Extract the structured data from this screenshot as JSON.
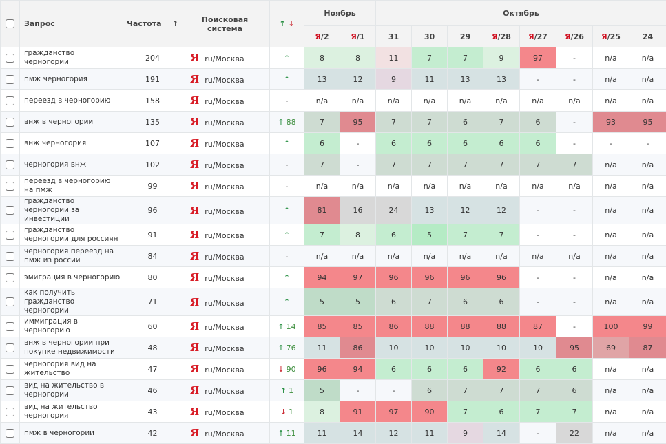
{
  "header": {
    "query": "Запрос",
    "frequency": "Частота",
    "frequency_sort": "↑",
    "engine": "Поисковая система",
    "change_up": "↑",
    "change_down": "↓",
    "months": [
      {
        "label": "Ноябрь",
        "span": 2
      },
      {
        "label": "Октябрь",
        "span": 8
      }
    ],
    "dates": [
      {
        "ya": "Я",
        "num": "/2"
      },
      {
        "ya": "Я",
        "num": "/1"
      },
      {
        "ya": "",
        "num": "31"
      },
      {
        "ya": "",
        "num": "30"
      },
      {
        "ya": "",
        "num": "29"
      },
      {
        "ya": "Я",
        "num": "/28"
      },
      {
        "ya": "Я",
        "num": "/27"
      },
      {
        "ya": "Я",
        "num": "/26"
      },
      {
        "ya": "Я",
        "num": "/25"
      },
      {
        "ya": "",
        "num": "24"
      }
    ]
  },
  "engine_logo": "Я",
  "engine_region": "ru/Москва",
  "colors": {
    "L": "#dcf1e0",
    "G": "#c4edd0",
    "G2": "#b5ebc5",
    "M": "#cedcd2",
    "M2": "#bfdcc8",
    "B": "#d6e2e3",
    "P": "#e5d8e1",
    "K": "#f2e1e2",
    "S": "#d8d8d8",
    "R": "#f4878b",
    "D": "#e08a90",
    "D2": "#e0a4a6"
  },
  "rows": [
    {
      "query": "гражданство черногории",
      "freq": "204",
      "dir": "up",
      "delta": "",
      "cells": [
        [
          "8",
          "L"
        ],
        [
          "8",
          "L"
        ],
        [
          "11",
          "K"
        ],
        [
          "7",
          "G"
        ],
        [
          "7",
          "G"
        ],
        [
          "9",
          "L"
        ],
        [
          "97",
          "R"
        ],
        [
          "-",
          ""
        ],
        [
          "n/a",
          ""
        ],
        [
          "n/a",
          ""
        ]
      ]
    },
    {
      "query": "пмж черногория",
      "freq": "191",
      "dir": "up",
      "delta": "",
      "cells": [
        [
          "13",
          "B"
        ],
        [
          "12",
          "B"
        ],
        [
          "9",
          "P"
        ],
        [
          "11",
          "B"
        ],
        [
          "13",
          "B"
        ],
        [
          "13",
          "B"
        ],
        [
          "-",
          ""
        ],
        [
          "-",
          ""
        ],
        [
          "n/a",
          ""
        ],
        [
          "n/a",
          ""
        ]
      ]
    },
    {
      "query": "переезд в черногорию",
      "freq": "158",
      "dir": "none",
      "delta": "",
      "cells": [
        [
          "n/a",
          ""
        ],
        [
          "n/a",
          ""
        ],
        [
          "n/a",
          ""
        ],
        [
          "n/a",
          ""
        ],
        [
          "n/a",
          ""
        ],
        [
          "n/a",
          ""
        ],
        [
          "n/a",
          ""
        ],
        [
          "n/a",
          ""
        ],
        [
          "n/a",
          ""
        ],
        [
          "n/a",
          ""
        ]
      ]
    },
    {
      "query": "внж в черногории",
      "freq": "135",
      "dir": "up",
      "delta": "88",
      "cells": [
        [
          "7",
          "M"
        ],
        [
          "95",
          "D"
        ],
        [
          "7",
          "M"
        ],
        [
          "7",
          "M"
        ],
        [
          "6",
          "M"
        ],
        [
          "7",
          "M"
        ],
        [
          "6",
          "M"
        ],
        [
          "-",
          ""
        ],
        [
          "93",
          "D"
        ],
        [
          "95",
          "D"
        ]
      ]
    },
    {
      "query": "внж черногория",
      "freq": "107",
      "dir": "up",
      "delta": "",
      "cells": [
        [
          "6",
          "G"
        ],
        [
          "-",
          ""
        ],
        [
          "6",
          "G"
        ],
        [
          "6",
          "G"
        ],
        [
          "6",
          "G"
        ],
        [
          "6",
          "G"
        ],
        [
          "6",
          "G"
        ],
        [
          "-",
          ""
        ],
        [
          "-",
          ""
        ],
        [
          "-",
          ""
        ]
      ]
    },
    {
      "query": "черногория внж",
      "freq": "102",
      "dir": "none",
      "delta": "",
      "cells": [
        [
          "7",
          "M"
        ],
        [
          "-",
          ""
        ],
        [
          "7",
          "M"
        ],
        [
          "7",
          "M"
        ],
        [
          "7",
          "M"
        ],
        [
          "7",
          "M"
        ],
        [
          "7",
          "M"
        ],
        [
          "7",
          "M"
        ],
        [
          "n/a",
          ""
        ],
        [
          "n/a",
          ""
        ]
      ]
    },
    {
      "query": "переезд в черногорию на пмж",
      "freq": "99",
      "dir": "none",
      "delta": "",
      "cells": [
        [
          "n/a",
          ""
        ],
        [
          "n/a",
          ""
        ],
        [
          "n/a",
          ""
        ],
        [
          "n/a",
          ""
        ],
        [
          "n/a",
          ""
        ],
        [
          "n/a",
          ""
        ],
        [
          "n/a",
          ""
        ],
        [
          "n/a",
          ""
        ],
        [
          "n/a",
          ""
        ],
        [
          "n/a",
          ""
        ]
      ]
    },
    {
      "query": "гражданство черногории за инвестиции",
      "freq": "96",
      "dir": "up",
      "delta": "",
      "cells": [
        [
          "81",
          "D"
        ],
        [
          "16",
          "S"
        ],
        [
          "24",
          "S"
        ],
        [
          "13",
          "B"
        ],
        [
          "12",
          "B"
        ],
        [
          "12",
          "B"
        ],
        [
          "-",
          ""
        ],
        [
          "-",
          ""
        ],
        [
          "n/a",
          ""
        ],
        [
          "n/a",
          ""
        ]
      ]
    },
    {
      "query": "гражданство черногории для россиян",
      "freq": "91",
      "dir": "up",
      "delta": "",
      "cells": [
        [
          "7",
          "G"
        ],
        [
          "8",
          "L"
        ],
        [
          "6",
          "G"
        ],
        [
          "5",
          "G2"
        ],
        [
          "7",
          "G"
        ],
        [
          "7",
          "G"
        ],
        [
          "-",
          ""
        ],
        [
          "-",
          ""
        ],
        [
          "n/a",
          ""
        ],
        [
          "n/a",
          ""
        ]
      ]
    },
    {
      "query": "черногория переезд на пмж из россии",
      "freq": "84",
      "dir": "none",
      "delta": "",
      "cells": [
        [
          "n/a",
          ""
        ],
        [
          "n/a",
          ""
        ],
        [
          "n/a",
          ""
        ],
        [
          "n/a",
          ""
        ],
        [
          "n/a",
          ""
        ],
        [
          "n/a",
          ""
        ],
        [
          "n/a",
          ""
        ],
        [
          "n/a",
          ""
        ],
        [
          "n/a",
          ""
        ],
        [
          "n/a",
          ""
        ]
      ]
    },
    {
      "query": "эмиграция в черногорию",
      "freq": "80",
      "dir": "up",
      "delta": "",
      "cells": [
        [
          "94",
          "R"
        ],
        [
          "97",
          "R"
        ],
        [
          "96",
          "R"
        ],
        [
          "96",
          "R"
        ],
        [
          "96",
          "R"
        ],
        [
          "96",
          "R"
        ],
        [
          "-",
          ""
        ],
        [
          "-",
          ""
        ],
        [
          "n/a",
          ""
        ],
        [
          "n/a",
          ""
        ]
      ]
    },
    {
      "query": "как получить гражданство черногории",
      "freq": "71",
      "dir": "up",
      "delta": "",
      "cells": [
        [
          "5",
          "M2"
        ],
        [
          "5",
          "M2"
        ],
        [
          "6",
          "M"
        ],
        [
          "7",
          "M"
        ],
        [
          "6",
          "M"
        ],
        [
          "6",
          "M"
        ],
        [
          "-",
          ""
        ],
        [
          "-",
          ""
        ],
        [
          "n/a",
          ""
        ],
        [
          "n/a",
          ""
        ]
      ]
    },
    {
      "query": "иммиграция в черногорию",
      "freq": "60",
      "dir": "up",
      "delta": "14",
      "cells": [
        [
          "85",
          "R"
        ],
        [
          "85",
          "R"
        ],
        [
          "86",
          "R"
        ],
        [
          "88",
          "R"
        ],
        [
          "88",
          "R"
        ],
        [
          "88",
          "R"
        ],
        [
          "87",
          "R"
        ],
        [
          "-",
          ""
        ],
        [
          "100",
          "R"
        ],
        [
          "99",
          "R"
        ]
      ]
    },
    {
      "query": "внж в черногории при покупке недвижимости",
      "freq": "48",
      "dir": "up",
      "delta": "76",
      "cells": [
        [
          "11",
          "B"
        ],
        [
          "86",
          "D"
        ],
        [
          "10",
          "B"
        ],
        [
          "10",
          "B"
        ],
        [
          "10",
          "B"
        ],
        [
          "10",
          "B"
        ],
        [
          "10",
          "B"
        ],
        [
          "95",
          "D"
        ],
        [
          "69",
          "D2"
        ],
        [
          "87",
          "D"
        ]
      ]
    },
    {
      "query": "черногория вид на жительство",
      "freq": "47",
      "dir": "down",
      "delta": "90",
      "cells": [
        [
          "96",
          "R"
        ],
        [
          "94",
          "R"
        ],
        [
          "6",
          "G"
        ],
        [
          "6",
          "G"
        ],
        [
          "6",
          "G"
        ],
        [
          "92",
          "R"
        ],
        [
          "6",
          "G"
        ],
        [
          "6",
          "G"
        ],
        [
          "n/a",
          ""
        ],
        [
          "n/a",
          ""
        ]
      ]
    },
    {
      "query": "вид на жительство в черногории",
      "freq": "46",
      "dir": "up",
      "delta": "1",
      "cells": [
        [
          "5",
          "M2"
        ],
        [
          "-",
          ""
        ],
        [
          "-",
          ""
        ],
        [
          "6",
          "M"
        ],
        [
          "7",
          "M"
        ],
        [
          "7",
          "M"
        ],
        [
          "7",
          "M"
        ],
        [
          "6",
          "M"
        ],
        [
          "n/a",
          ""
        ],
        [
          "n/a",
          ""
        ]
      ]
    },
    {
      "query": "вид на жительство черногория",
      "freq": "43",
      "dir": "down",
      "delta": "1",
      "cells": [
        [
          "8",
          "L"
        ],
        [
          "91",
          "R"
        ],
        [
          "97",
          "R"
        ],
        [
          "90",
          "R"
        ],
        [
          "7",
          "G"
        ],
        [
          "6",
          "G"
        ],
        [
          "7",
          "G"
        ],
        [
          "7",
          "G"
        ],
        [
          "n/a",
          ""
        ],
        [
          "n/a",
          ""
        ]
      ]
    },
    {
      "query": "пмж в черногории",
      "freq": "42",
      "dir": "up",
      "delta": "11",
      "cells": [
        [
          "11",
          "B"
        ],
        [
          "14",
          "B"
        ],
        [
          "12",
          "B"
        ],
        [
          "11",
          "B"
        ],
        [
          "9",
          "P"
        ],
        [
          "14",
          "B"
        ],
        [
          "-",
          ""
        ],
        [
          "22",
          "S"
        ],
        [
          "n/a",
          ""
        ],
        [
          "n/a",
          ""
        ]
      ]
    }
  ]
}
